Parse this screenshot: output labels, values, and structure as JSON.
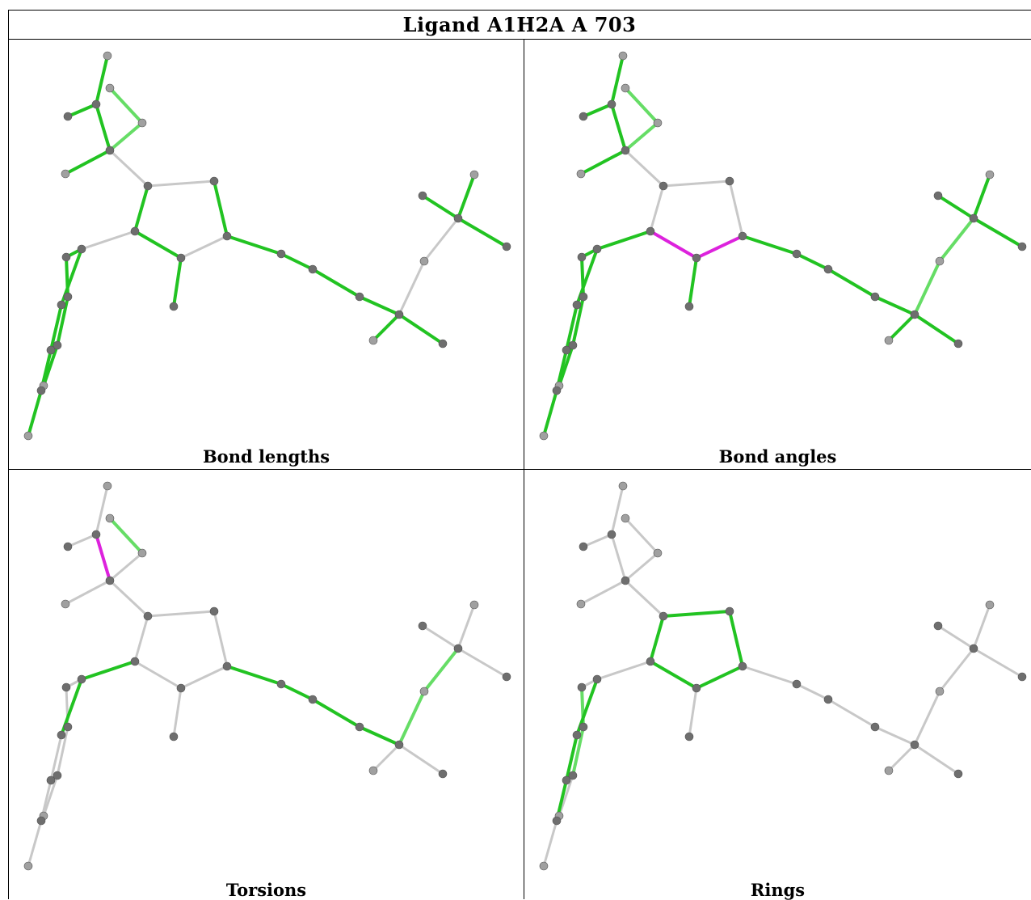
{
  "title": "Ligand A1H2A A 703",
  "panels": [
    {
      "key": "lengths",
      "caption": "Bond lengths"
    },
    {
      "key": "angles",
      "caption": "Bond angles"
    },
    {
      "key": "torsions",
      "caption": "Torsions"
    },
    {
      "key": "rings",
      "caption": "Rings"
    }
  ],
  "colors": {
    "ok": "#22c322",
    "ok_light": "#66dd66",
    "outlier": "#dd22dd",
    "neutral": "#c8c8c8",
    "atom_dark": "#6e6e6e",
    "atom_light": "#a0a0a0"
  }
}
